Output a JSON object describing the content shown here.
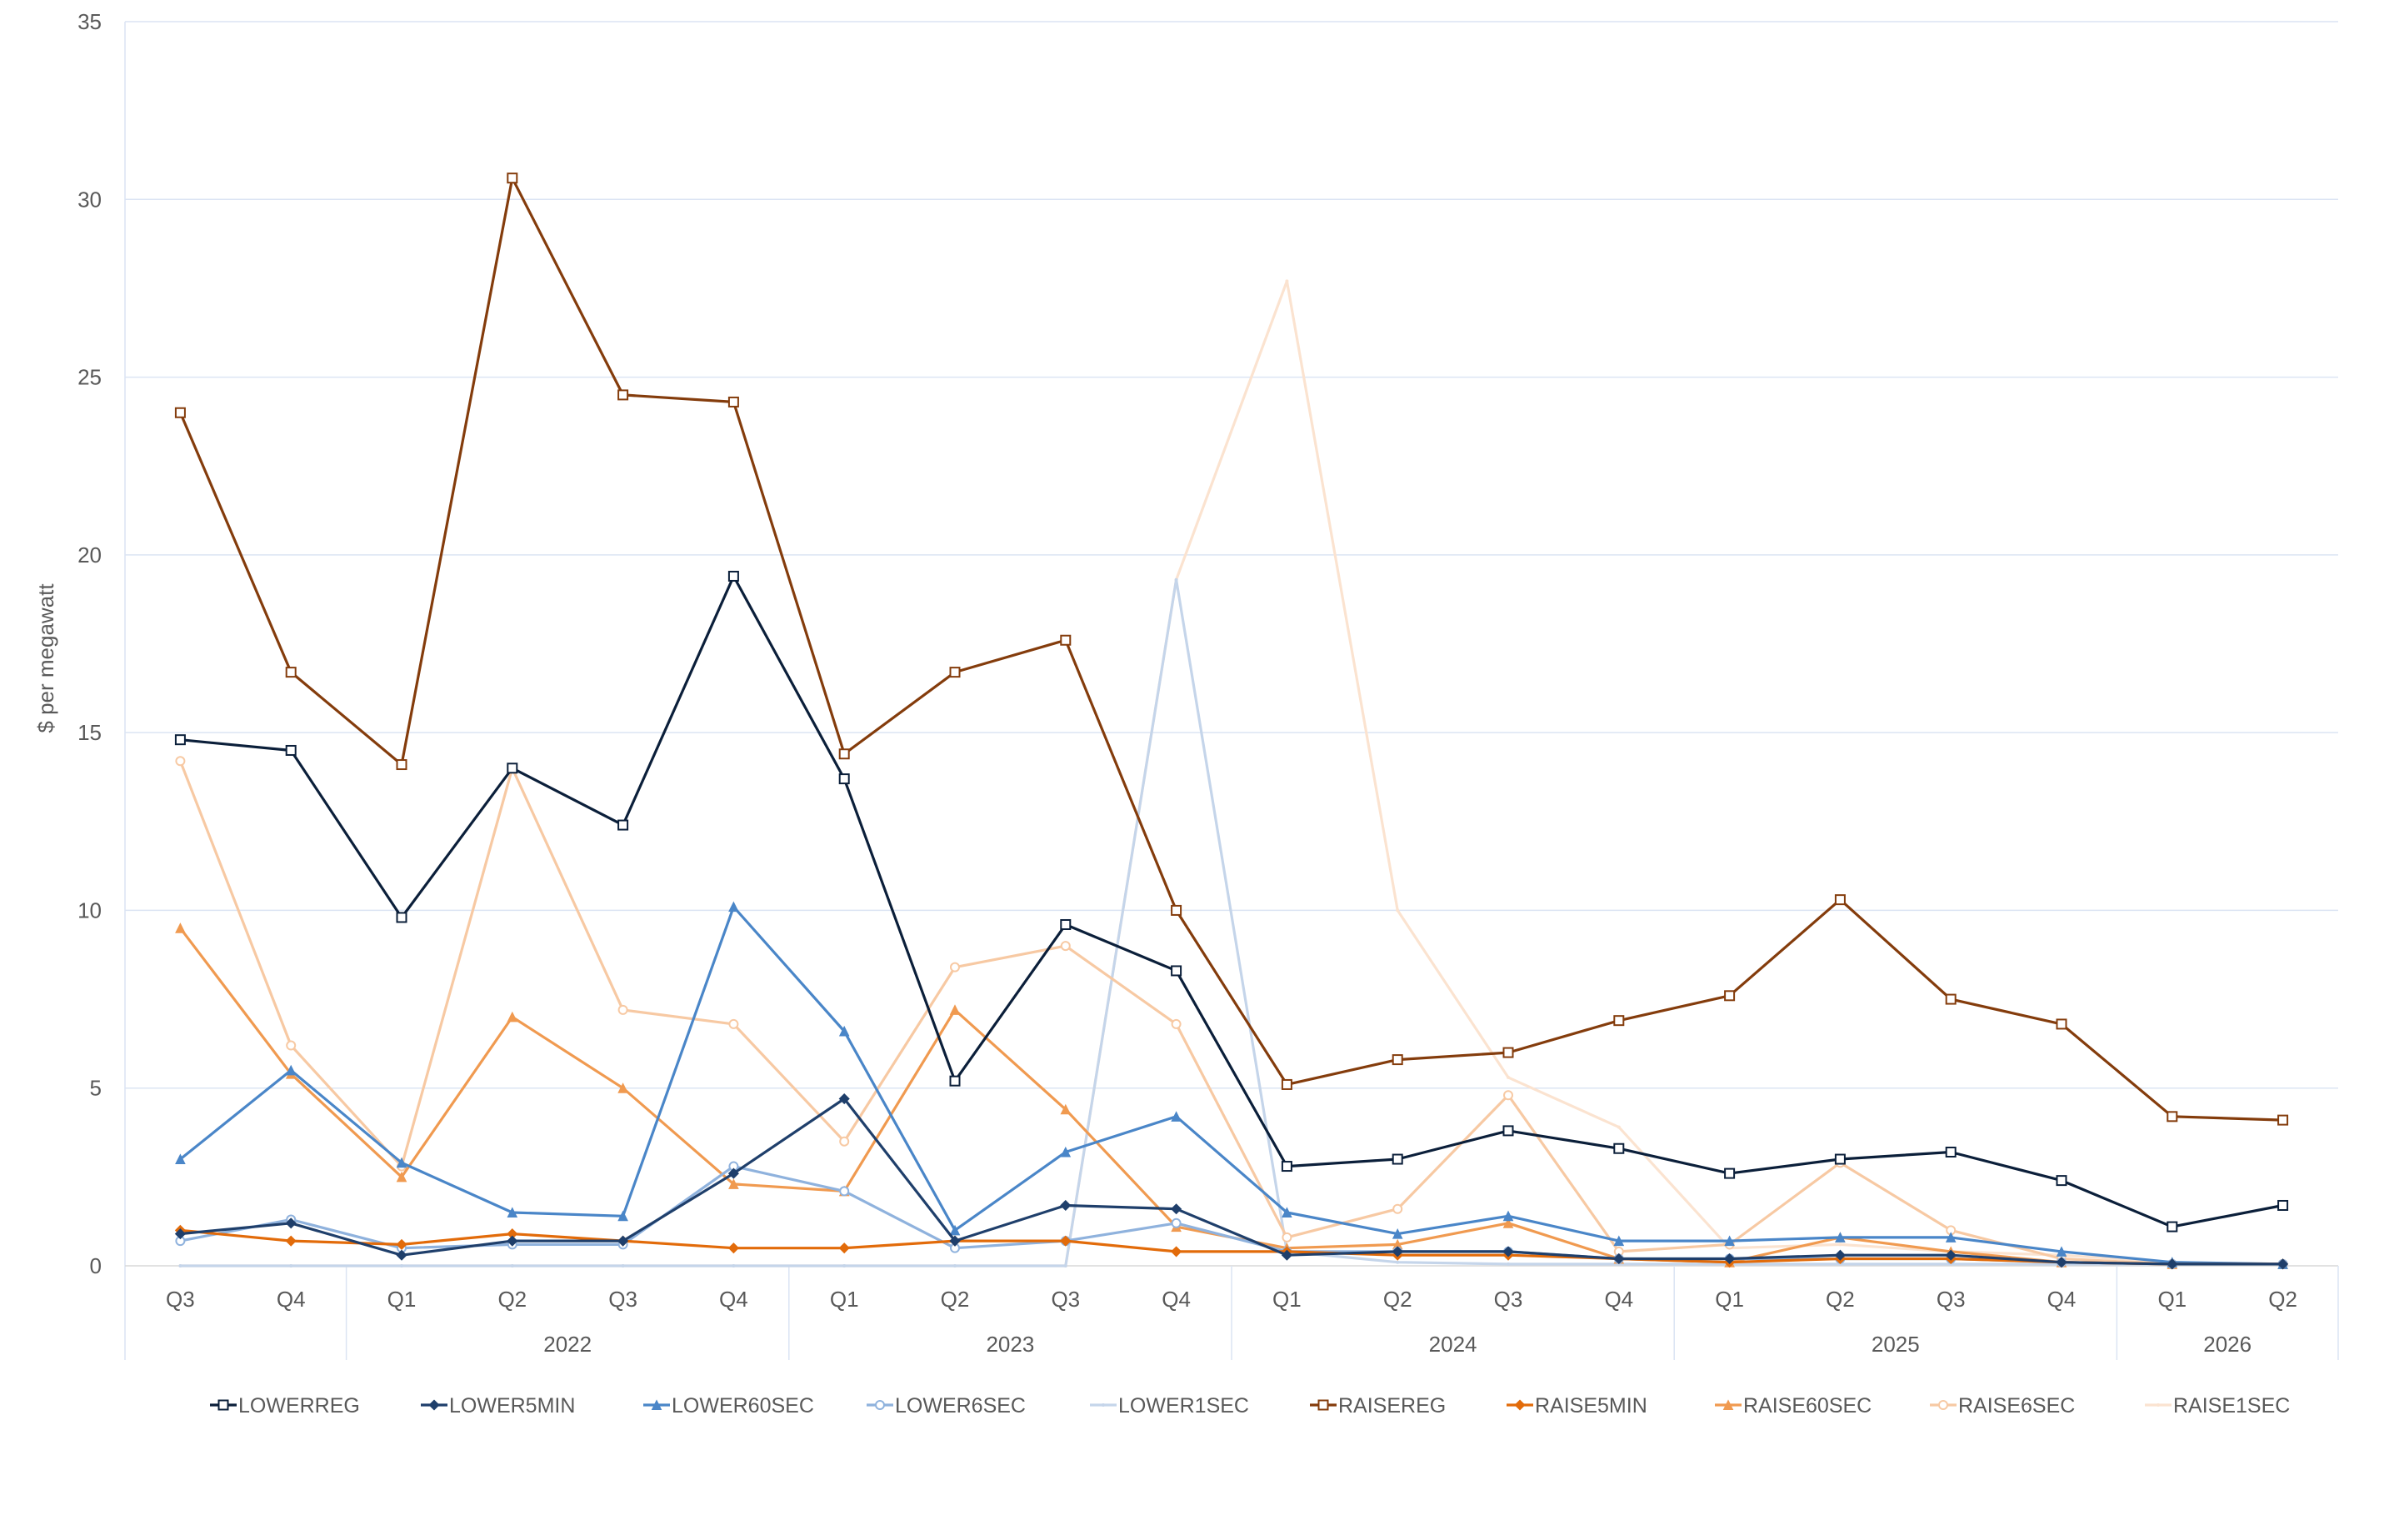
{
  "chart_data": {
    "type": "line",
    "title": "",
    "xlabel": "",
    "ylabel": "$ per megawatt",
    "ylim": [
      0,
      35
    ],
    "yticks": [
      0,
      5,
      10,
      15,
      20,
      25,
      30,
      35
    ],
    "grid": "horizontal",
    "legend_position": "bottom",
    "categories": [
      "Q3",
      "Q4",
      "Q1",
      "Q2",
      "Q3",
      "Q4",
      "Q1",
      "Q2",
      "Q3",
      "Q4",
      "Q1",
      "Q2",
      "Q3",
      "Q4",
      "Q1",
      "Q2",
      "Q3",
      "Q4",
      "Q1",
      "Q2"
    ],
    "year_groups": [
      {
        "label": "",
        "count": 2
      },
      {
        "label": "2022",
        "count": 4
      },
      {
        "label": "2023",
        "count": 4
      },
      {
        "label": "2024",
        "count": 4
      },
      {
        "label": "2025",
        "count": 4
      },
      {
        "label": "2026",
        "count": 2
      }
    ],
    "series": [
      {
        "name": "LOWERREG",
        "color": "#0b1f3a",
        "marker": "square",
        "values": [
          14.8,
          14.5,
          9.8,
          14.0,
          12.4,
          19.4,
          13.7,
          5.2,
          9.6,
          8.3,
          2.8,
          3.0,
          3.8,
          3.3,
          2.6,
          3.0,
          3.2,
          2.4,
          1.1,
          1.7
        ]
      },
      {
        "name": "LOWER5MIN",
        "color": "#1f3f6b",
        "marker": "diamond",
        "values": [
          0.9,
          1.2,
          0.3,
          0.7,
          0.7,
          2.6,
          4.7,
          0.7,
          1.7,
          1.6,
          0.3,
          0.4,
          0.4,
          0.2,
          0.2,
          0.3,
          0.3,
          0.1,
          0.05,
          0.05
        ]
      },
      {
        "name": "LOWER60SEC",
        "color": "#4a86c8",
        "marker": "triangle",
        "values": [
          3.0,
          5.5,
          2.9,
          1.5,
          1.4,
          10.1,
          6.6,
          1.0,
          3.2,
          4.2,
          1.5,
          0.9,
          1.4,
          0.7,
          0.7,
          0.8,
          0.8,
          0.4,
          0.1,
          0.05
        ]
      },
      {
        "name": "LOWER6SEC",
        "color": "#8fb2dd",
        "marker": "circle",
        "values": [
          0.7,
          1.3,
          0.5,
          0.6,
          0.6,
          2.8,
          2.1,
          0.5,
          0.7,
          1.2,
          0.4,
          0.4,
          0.4,
          0.2,
          0.2,
          0.2,
          0.2,
          0.1,
          0.05,
          0.05
        ]
      },
      {
        "name": "LOWER1SEC",
        "color": "#c5d5ea",
        "marker": "none",
        "values": [
          0,
          0,
          0,
          0,
          0,
          0,
          0,
          0,
          0,
          19.3,
          0.4,
          0.1,
          0.05,
          0.05,
          0.05,
          0.05,
          0.05,
          0.05,
          0.05,
          0.05
        ]
      },
      {
        "name": "RAISEREG",
        "color": "#843c0c",
        "marker": "square",
        "values": [
          24.0,
          16.7,
          14.1,
          30.6,
          24.5,
          24.3,
          14.4,
          16.7,
          17.6,
          10.0,
          5.1,
          5.8,
          6.0,
          6.9,
          7.6,
          10.3,
          7.5,
          6.8,
          4.2,
          4.1
        ]
      },
      {
        "name": "RAISE5MIN",
        "color": "#e26b0a",
        "marker": "diamond",
        "values": [
          1.0,
          0.7,
          0.6,
          0.9,
          0.7,
          0.5,
          0.5,
          0.7,
          0.7,
          0.4,
          0.4,
          0.3,
          0.3,
          0.2,
          0.1,
          0.2,
          0.2,
          0.1,
          0.05,
          0.05
        ]
      },
      {
        "name": "RAISE60SEC",
        "color": "#f09a50",
        "marker": "triangle",
        "values": [
          9.5,
          5.4,
          2.5,
          7.0,
          5.0,
          2.3,
          2.1,
          7.2,
          4.4,
          1.1,
          0.5,
          0.6,
          1.2,
          0.2,
          0.1,
          0.8,
          0.4,
          0.1,
          0.05,
          0.05
        ]
      },
      {
        "name": "RAISE6SEC",
        "color": "#f7c9a3",
        "marker": "circle",
        "values": [
          14.2,
          6.2,
          2.8,
          14.0,
          7.2,
          6.8,
          3.5,
          8.4,
          9.0,
          6.8,
          0.8,
          1.6,
          4.8,
          0.4,
          0.6,
          2.9,
          1.0,
          0.2,
          0.05,
          0.05
        ]
      },
      {
        "name": "RAISE1SEC",
        "color": "#fbe3d0",
        "marker": "none",
        "values": [
          0,
          0,
          0,
          0,
          0,
          0,
          0,
          0,
          0,
          19.3,
          27.7,
          10.0,
          5.3,
          3.9,
          0.5,
          0.6,
          0.4,
          0.3,
          0.1,
          0.05
        ]
      }
    ]
  }
}
